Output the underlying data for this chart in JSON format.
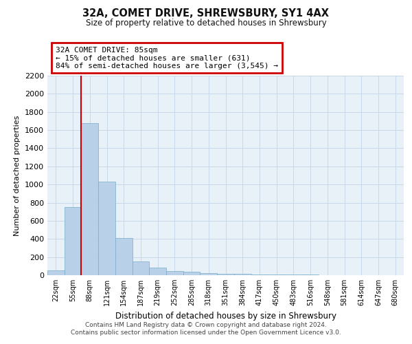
{
  "title": "32A, COMET DRIVE, SHREWSBURY, SY1 4AX",
  "subtitle": "Size of property relative to detached houses in Shrewsbury",
  "xlabel": "Distribution of detached houses by size in Shrewsbury",
  "ylabel": "Number of detached properties",
  "footer_line1": "Contains HM Land Registry data © Crown copyright and database right 2024.",
  "footer_line2": "Contains public sector information licensed under the Open Government Licence v3.0.",
  "categories": [
    "22sqm",
    "55sqm",
    "88sqm",
    "121sqm",
    "154sqm",
    "187sqm",
    "219sqm",
    "252sqm",
    "285sqm",
    "318sqm",
    "351sqm",
    "384sqm",
    "417sqm",
    "450sqm",
    "483sqm",
    "516sqm",
    "548sqm",
    "581sqm",
    "614sqm",
    "647sqm",
    "680sqm"
  ],
  "values": [
    50,
    750,
    1675,
    1030,
    410,
    155,
    80,
    45,
    35,
    25,
    18,
    15,
    10,
    7,
    5,
    4,
    3,
    2,
    2,
    1,
    1
  ],
  "bar_color": "#b8d0e8",
  "bar_edgecolor": "#7aaac8",
  "grid_color": "#c8d8e8",
  "background_color": "#e8f0f8",
  "annotation_text": "32A COMET DRIVE: 85sqm\n← 15% of detached houses are smaller (631)\n84% of semi-detached houses are larger (3,545) →",
  "annotation_box_color": "#ffffff",
  "annotation_border_color": "#cc0000",
  "red_line_index": 1.5,
  "ylim": [
    0,
    2200
  ],
  "yticks": [
    0,
    200,
    400,
    600,
    800,
    1000,
    1200,
    1400,
    1600,
    1800,
    2000,
    2200
  ]
}
